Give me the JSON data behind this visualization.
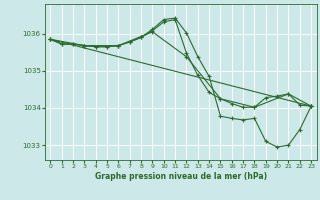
{
  "bg_color": "#cce8e8",
  "grid_color": "#ffffff",
  "line_color": "#2d6a2d",
  "marker_color": "#2d6a2d",
  "title": "Graphe pression niveau de la mer (hPa)",
  "xlim": [
    -0.5,
    23.5
  ],
  "ylim": [
    1032.6,
    1036.8
  ],
  "yticks": [
    1033,
    1034,
    1035,
    1036
  ],
  "xticks": [
    0,
    1,
    2,
    3,
    4,
    5,
    6,
    7,
    8,
    9,
    10,
    11,
    12,
    13,
    14,
    15,
    16,
    17,
    18,
    19,
    20,
    21,
    22,
    23
  ],
  "series": [
    {
      "x": [
        0,
        1,
        2,
        3,
        4,
        5,
        6,
        7,
        8,
        9,
        10,
        11,
        12,
        13,
        14,
        15,
        16,
        17,
        18,
        19,
        20,
        21,
        22,
        23
      ],
      "y": [
        1035.85,
        1035.72,
        1035.72,
        1035.68,
        1035.65,
        1035.65,
        1035.68,
        1035.78,
        1035.9,
        1036.12,
        1036.38,
        1036.42,
        1036.02,
        1035.38,
        1034.85,
        1033.78,
        1033.72,
        1033.68,
        1033.72,
        1033.1,
        1032.95,
        1033.0,
        1033.42,
        1034.05
      ]
    },
    {
      "x": [
        0,
        1,
        2,
        3,
        4,
        5,
        6,
        7,
        8,
        9,
        10,
        11,
        12,
        13,
        14,
        15,
        16,
        17,
        18,
        19,
        20,
        21,
        22,
        23
      ],
      "y": [
        1035.85,
        1035.72,
        1035.72,
        1035.68,
        1035.65,
        1035.65,
        1035.68,
        1035.78,
        1035.9,
        1036.08,
        1036.32,
        1036.38,
        1035.48,
        1034.88,
        1034.42,
        1034.25,
        1034.12,
        1034.02,
        1034.02,
        1034.28,
        1034.32,
        1034.38,
        1034.08,
        1034.05
      ]
    },
    {
      "x": [
        0,
        3,
        6,
        9,
        12,
        15,
        18,
        21,
        23
      ],
      "y": [
        1035.85,
        1035.68,
        1035.68,
        1036.05,
        1035.38,
        1034.25,
        1034.02,
        1034.38,
        1034.05
      ]
    },
    {
      "x": [
        0,
        23
      ],
      "y": [
        1035.85,
        1034.05
      ]
    }
  ]
}
